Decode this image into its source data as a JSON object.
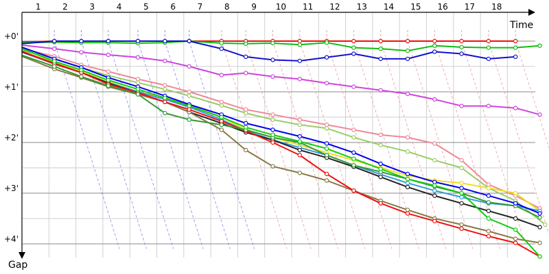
{
  "chart_data": {
    "type": "line",
    "xlabel": "Time",
    "ylabel": "Gap",
    "x_ticks": [
      "1",
      "2",
      "3",
      "4",
      "5",
      "6",
      "7",
      "8",
      "9",
      "10",
      "11",
      "12",
      "13",
      "14",
      "15",
      "16",
      "17",
      "18"
    ],
    "y_ticks": [
      "+0'",
      "+1'",
      "+2'",
      "+3'",
      "+4'"
    ],
    "x_range": [
      0,
      19
    ],
    "y_range_minutes": [
      -0.7,
      4.3
    ],
    "grid": true,
    "series": [
      {
        "color": "#ee1111",
        "points": [
          [
            0,
            0.02
          ],
          [
            1.2,
            0
          ],
          [
            2.2,
            0
          ],
          [
            3.2,
            0
          ],
          [
            4.3,
            0
          ],
          [
            5.3,
            0
          ],
          [
            6.2,
            0
          ],
          [
            7.4,
            0
          ],
          [
            8.3,
            0
          ],
          [
            9.3,
            0
          ],
          [
            10.3,
            0
          ],
          [
            11.3,
            0
          ],
          [
            12.3,
            0
          ],
          [
            13.3,
            0
          ],
          [
            14.3,
            0
          ],
          [
            15.3,
            0
          ],
          [
            16.3,
            0
          ],
          [
            17.3,
            0
          ],
          [
            18.3,
            0
          ]
        ]
      },
      {
        "color": "#11bb11",
        "points": [
          [
            0,
            0.03
          ],
          [
            1.2,
            0.02
          ],
          [
            2.2,
            0.03
          ],
          [
            3.2,
            0.03
          ],
          [
            4.3,
            0.04
          ],
          [
            5.3,
            0.03
          ],
          [
            6.2,
            0
          ],
          [
            7.4,
            0.04
          ],
          [
            8.3,
            0.05
          ],
          [
            9.3,
            0.04
          ],
          [
            10.3,
            0.07
          ],
          [
            11.3,
            0.03
          ],
          [
            12.3,
            0.13
          ],
          [
            13.3,
            0.15
          ],
          [
            14.3,
            0.19
          ],
          [
            15.3,
            0.09
          ],
          [
            16.3,
            0.12
          ],
          [
            17.3,
            0.13
          ],
          [
            18.3,
            0.13
          ],
          [
            19.2,
            0.09
          ]
        ]
      },
      {
        "color": "#1111cc",
        "points": [
          [
            0,
            0.05
          ],
          [
            1.2,
            0
          ],
          [
            2.2,
            0
          ],
          [
            3.2,
            0
          ],
          [
            4.3,
            0
          ],
          [
            5.3,
            0
          ],
          [
            6.2,
            0
          ],
          [
            7.4,
            0.15
          ],
          [
            8.3,
            0.31
          ],
          [
            9.3,
            0.37
          ],
          [
            10.3,
            0.39
          ],
          [
            11.3,
            0.32
          ],
          [
            12.3,
            0.25
          ],
          [
            13.3,
            0.35
          ],
          [
            14.3,
            0.35
          ],
          [
            15.3,
            0.21
          ],
          [
            16.3,
            0.25
          ],
          [
            17.3,
            0.35
          ],
          [
            18.3,
            0.31
          ]
        ]
      },
      {
        "color": "#cc44dd",
        "points": [
          [
            0,
            0.08
          ],
          [
            1.2,
            0.15
          ],
          [
            2.2,
            0.22
          ],
          [
            3.2,
            0.27
          ],
          [
            4.3,
            0.32
          ],
          [
            5.3,
            0.39
          ],
          [
            6.2,
            0.5
          ],
          [
            7.4,
            0.67
          ],
          [
            8.3,
            0.63
          ],
          [
            9.3,
            0.7
          ],
          [
            10.3,
            0.75
          ],
          [
            11.3,
            0.83
          ],
          [
            12.3,
            0.9
          ],
          [
            13.3,
            0.97
          ],
          [
            14.3,
            1.04
          ],
          [
            15.3,
            1.15
          ],
          [
            16.3,
            1.28
          ],
          [
            17.3,
            1.28
          ],
          [
            18.3,
            1.32
          ],
          [
            19.2,
            1.45
          ]
        ]
      },
      {
        "color": "#ee8899",
        "points": [
          [
            0,
            0.15
          ],
          [
            1.2,
            0.3
          ],
          [
            2.2,
            0.47
          ],
          [
            3.2,
            0.6
          ],
          [
            4.3,
            0.75
          ],
          [
            5.3,
            0.87
          ],
          [
            6.2,
            1.0
          ],
          [
            7.4,
            1.2
          ],
          [
            8.3,
            1.35
          ],
          [
            9.3,
            1.45
          ],
          [
            10.3,
            1.55
          ],
          [
            11.3,
            1.65
          ],
          [
            12.3,
            1.75
          ],
          [
            13.3,
            1.85
          ],
          [
            14.3,
            1.9
          ],
          [
            15.3,
            2.02
          ],
          [
            16.3,
            2.35
          ],
          [
            17.3,
            2.83
          ],
          [
            18.3,
            3.05
          ],
          [
            19.2,
            3.3
          ]
        ]
      },
      {
        "color": "#99cc66",
        "points": [
          [
            0,
            0.18
          ],
          [
            1.2,
            0.35
          ],
          [
            2.2,
            0.52
          ],
          [
            3.2,
            0.68
          ],
          [
            4.3,
            0.82
          ],
          [
            5.3,
            0.95
          ],
          [
            6.2,
            1.08
          ],
          [
            7.4,
            1.27
          ],
          [
            8.3,
            1.42
          ],
          [
            9.3,
            1.55
          ],
          [
            10.3,
            1.65
          ],
          [
            11.3,
            1.72
          ],
          [
            12.3,
            1.9
          ],
          [
            13.3,
            2.05
          ],
          [
            14.3,
            2.18
          ],
          [
            15.3,
            2.35
          ],
          [
            16.3,
            2.5
          ],
          [
            17.3,
            2.9
          ],
          [
            18.3,
            3.15
          ],
          [
            19.4,
            3.62
          ]
        ]
      },
      {
        "color": "#eedd22",
        "points": [
          [
            0,
            0.2
          ],
          [
            1.2,
            0.42
          ],
          [
            2.2,
            0.6
          ],
          [
            3.2,
            0.8
          ],
          [
            4.3,
            1.0
          ],
          [
            5.3,
            1.12
          ],
          [
            6.2,
            1.25
          ],
          [
            7.4,
            1.5
          ],
          [
            8.3,
            1.75
          ],
          [
            9.3,
            1.9
          ],
          [
            10.3,
            2.05
          ],
          [
            11.3,
            2.2
          ],
          [
            12.3,
            2.35
          ],
          [
            13.3,
            2.5
          ],
          [
            14.3,
            2.65
          ],
          [
            15.3,
            2.75
          ],
          [
            16.3,
            2.8
          ],
          [
            17.3,
            2.9
          ],
          [
            18.3,
            3.0
          ],
          [
            19.2,
            3.35
          ]
        ]
      },
      {
        "color": "#3399dd",
        "points": [
          [
            0,
            0.22
          ],
          [
            1.2,
            0.45
          ],
          [
            2.2,
            0.62
          ],
          [
            3.2,
            0.82
          ],
          [
            4.3,
            1.0
          ],
          [
            5.3,
            1.15
          ],
          [
            6.2,
            1.3
          ],
          [
            7.4,
            1.55
          ],
          [
            8.3,
            1.77
          ],
          [
            9.3,
            1.95
          ],
          [
            10.3,
            2.1
          ],
          [
            11.3,
            2.25
          ],
          [
            12.3,
            2.45
          ],
          [
            13.3,
            2.63
          ],
          [
            14.3,
            2.8
          ],
          [
            15.3,
            2.95
          ],
          [
            16.3,
            3.08
          ],
          [
            17.3,
            3.2
          ],
          [
            18.3,
            3.25
          ],
          [
            19.2,
            3.35
          ]
        ]
      },
      {
        "color": "#222222",
        "points": [
          [
            0,
            0.21
          ],
          [
            1.2,
            0.44
          ],
          [
            2.2,
            0.62
          ],
          [
            3.2,
            0.83
          ],
          [
            4.3,
            1.02
          ],
          [
            5.3,
            1.2
          ],
          [
            6.2,
            1.4
          ],
          [
            7.4,
            1.62
          ],
          [
            8.3,
            1.8
          ],
          [
            9.3,
            1.95
          ],
          [
            10.3,
            2.15
          ],
          [
            11.3,
            2.3
          ],
          [
            12.3,
            2.48
          ],
          [
            13.3,
            2.68
          ],
          [
            14.3,
            2.88
          ],
          [
            15.3,
            3.05
          ],
          [
            16.3,
            3.2
          ],
          [
            17.3,
            3.35
          ],
          [
            18.3,
            3.5
          ],
          [
            19.2,
            3.67
          ]
        ]
      },
      {
        "color": "#887744",
        "points": [
          [
            0,
            0.3
          ],
          [
            1.2,
            0.55
          ],
          [
            2.2,
            0.72
          ],
          [
            3.2,
            0.9
          ],
          [
            4.3,
            1.05
          ],
          [
            5.3,
            1.2
          ],
          [
            6.2,
            1.4
          ],
          [
            7.4,
            1.75
          ],
          [
            8.3,
            2.15
          ],
          [
            9.3,
            2.47
          ],
          [
            10.3,
            2.6
          ],
          [
            11.3,
            2.75
          ],
          [
            12.3,
            2.95
          ],
          [
            13.3,
            3.15
          ],
          [
            14.3,
            3.33
          ],
          [
            15.3,
            3.5
          ],
          [
            16.3,
            3.62
          ],
          [
            17.3,
            3.75
          ],
          [
            18.3,
            3.9
          ],
          [
            19.2,
            3.98
          ]
        ]
      },
      {
        "color": "#ee1111",
        "points": [
          [
            0,
            0.2
          ],
          [
            1.2,
            0.45
          ],
          [
            2.2,
            0.62
          ],
          [
            3.2,
            0.85
          ],
          [
            4.3,
            1.02
          ],
          [
            5.3,
            1.2
          ],
          [
            6.2,
            1.35
          ],
          [
            7.4,
            1.58
          ],
          [
            8.3,
            1.77
          ],
          [
            9.3,
            2.0
          ],
          [
            10.3,
            2.25
          ],
          [
            11.3,
            2.62
          ],
          [
            12.3,
            2.95
          ],
          [
            13.3,
            3.2
          ],
          [
            14.3,
            3.4
          ],
          [
            15.3,
            3.55
          ],
          [
            16.3,
            3.7
          ],
          [
            17.3,
            3.85
          ],
          [
            18.3,
            3.98
          ],
          [
            19.2,
            4.25
          ]
        ]
      },
      {
        "color": "#339933",
        "points": [
          [
            0,
            0.28
          ],
          [
            1.2,
            0.5
          ],
          [
            2.2,
            0.7
          ],
          [
            3.2,
            0.88
          ],
          [
            4.3,
            1.05
          ],
          [
            5.3,
            1.42
          ],
          [
            6.2,
            1.55
          ],
          [
            7.4,
            1.65
          ],
          [
            8.3,
            1.75
          ],
          [
            9.3,
            1.9
          ],
          [
            10.3,
            2.0
          ],
          [
            11.3,
            2.25
          ],
          [
            12.3,
            2.45
          ],
          [
            13.3,
            2.58
          ],
          [
            14.3,
            2.72
          ],
          [
            15.3,
            2.87
          ],
          [
            16.3,
            3.0
          ],
          [
            17.3,
            3.18
          ],
          [
            18.3,
            3.25
          ],
          [
            19.2,
            3.48
          ]
        ]
      },
      {
        "color": "#0000ee",
        "points": [
          [
            0,
            0.12
          ],
          [
            1.2,
            0.35
          ],
          [
            2.2,
            0.52
          ],
          [
            3.2,
            0.72
          ],
          [
            4.3,
            0.9
          ],
          [
            5.3,
            1.08
          ],
          [
            6.2,
            1.25
          ],
          [
            7.4,
            1.45
          ],
          [
            8.3,
            1.62
          ],
          [
            9.3,
            1.75
          ],
          [
            10.3,
            1.88
          ],
          [
            11.3,
            2.02
          ],
          [
            12.3,
            2.2
          ],
          [
            13.3,
            2.42
          ],
          [
            14.3,
            2.62
          ],
          [
            15.3,
            2.78
          ],
          [
            16.3,
            2.9
          ],
          [
            17.3,
            3.05
          ],
          [
            18.3,
            3.2
          ],
          [
            19.2,
            3.4
          ]
        ]
      },
      {
        "color": "#11cc11",
        "points": [
          [
            0,
            0.15
          ],
          [
            1.2,
            0.4
          ],
          [
            2.2,
            0.57
          ],
          [
            3.2,
            0.77
          ],
          [
            4.3,
            0.95
          ],
          [
            5.3,
            1.12
          ],
          [
            6.2,
            1.28
          ],
          [
            7.4,
            1.5
          ],
          [
            8.3,
            1.7
          ],
          [
            9.3,
            1.85
          ],
          [
            10.3,
            1.98
          ],
          [
            11.3,
            2.12
          ],
          [
            12.3,
            2.32
          ],
          [
            13.3,
            2.52
          ],
          [
            14.3,
            2.72
          ],
          [
            15.3,
            2.85
          ],
          [
            16.3,
            3.0
          ],
          [
            17.3,
            3.5
          ],
          [
            18.3,
            3.72
          ],
          [
            19.2,
            4.25
          ]
        ]
      }
    ]
  }
}
